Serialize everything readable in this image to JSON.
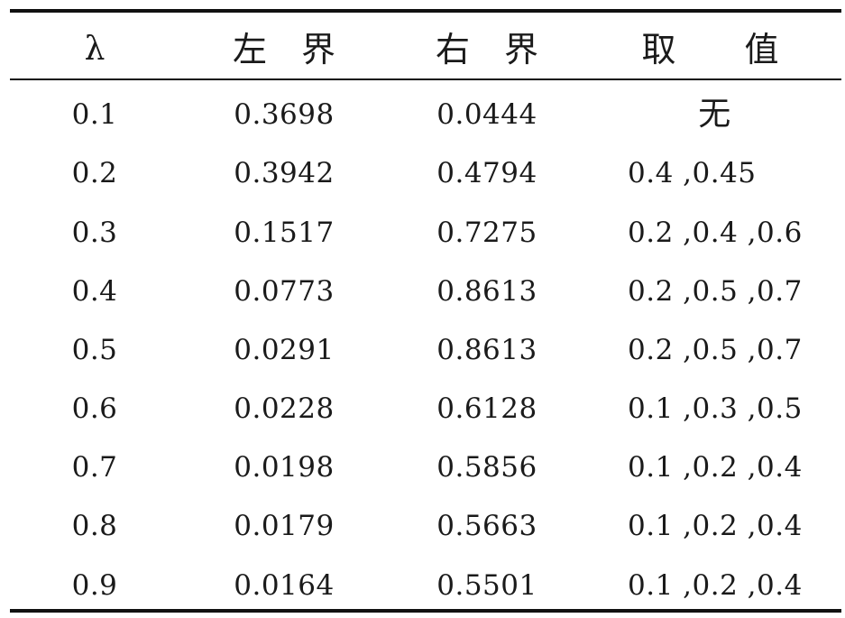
{
  "table": {
    "headers": {
      "lambda": "λ",
      "left": "左　界",
      "right": "右　界",
      "value": "取　　值"
    },
    "rows": [
      {
        "lambda": "0.1",
        "left": "0.3698",
        "right": "0.0444",
        "value": "无"
      },
      {
        "lambda": "0.2",
        "left": "0.3942",
        "right": "0.4794",
        "value": "0.4 ,0.45"
      },
      {
        "lambda": "0.3",
        "left": "0.1517",
        "right": "0.7275",
        "value": "0.2 ,0.4 ,0.6"
      },
      {
        "lambda": "0.4",
        "left": "0.0773",
        "right": "0.8613",
        "value": "0.2 ,0.5 ,0.7"
      },
      {
        "lambda": "0.5",
        "left": "0.0291",
        "right": "0.8613",
        "value": "0.2 ,0.5 ,0.7"
      },
      {
        "lambda": "0.6",
        "left": "0.0228",
        "right": "0.6128",
        "value": "0.1 ,0.3 ,0.5"
      },
      {
        "lambda": "0.7",
        "left": "0.0198",
        "right": "0.5856",
        "value": "0.1 ,0.2 ,0.4"
      },
      {
        "lambda": "0.8",
        "left": "0.0179",
        "right": "0.5663",
        "value": "0.1 ,0.2 ,0.4"
      },
      {
        "lambda": "0.9",
        "left": "0.0164",
        "right": "0.5501",
        "value": "0.1 ,0.2 ,0.4"
      }
    ]
  }
}
